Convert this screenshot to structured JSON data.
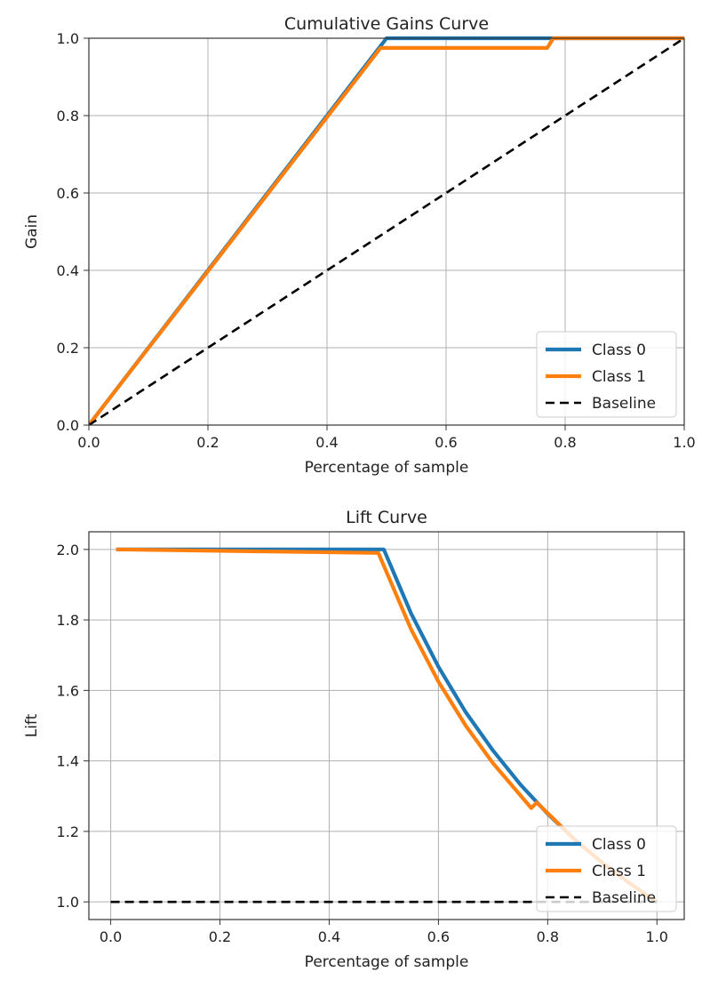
{
  "chart_data": [
    {
      "type": "line",
      "title": "Cumulative Gains Curve",
      "xlabel": "Percentage of sample",
      "ylabel": "Gain",
      "xlim": [
        0.0,
        1.0
      ],
      "ylim": [
        0.0,
        1.0
      ],
      "xticks": [
        "0.0",
        "0.2",
        "0.4",
        "0.6",
        "0.8",
        "1.0"
      ],
      "yticks": [
        "0.0",
        "0.2",
        "0.4",
        "0.6",
        "0.8",
        "1.0"
      ],
      "grid": true,
      "legend_position": "lower-right",
      "series": [
        {
          "name": "Class 0",
          "color": "#1f77b4",
          "x": [
            0.0,
            0.49,
            0.5,
            1.0
          ],
          "y": [
            0.0,
            0.98,
            1.0,
            1.0
          ]
        },
        {
          "name": "Class 1",
          "color": "#ff7f0e",
          "x": [
            0.0,
            0.49,
            0.77,
            0.78,
            1.0
          ],
          "y": [
            0.0,
            0.975,
            0.975,
            1.0,
            1.0
          ]
        },
        {
          "name": "Baseline",
          "color": "#000000",
          "dashed": true,
          "x": [
            0.0,
            1.0
          ],
          "y": [
            0.0,
            1.0
          ]
        }
      ]
    },
    {
      "type": "line",
      "title": "Lift Curve",
      "xlabel": "Percentage of sample",
      "ylabel": "Lift",
      "xlim": [
        -0.04,
        1.05
      ],
      "ylim": [
        0.95,
        2.05
      ],
      "xticks": [
        "0.0",
        "0.2",
        "0.4",
        "0.6",
        "0.8",
        "1.0"
      ],
      "yticks": [
        "1.0",
        "1.2",
        "1.4",
        "1.6",
        "1.8",
        "2.0"
      ],
      "grid": true,
      "legend_position": "lower-right",
      "series": [
        {
          "name": "Class 0",
          "color": "#1f77b4",
          "x": [
            0.01,
            0.5,
            0.55,
            0.6,
            0.65,
            0.7,
            0.75,
            0.8,
            0.85,
            0.9,
            0.95,
            1.0
          ],
          "y": [
            2.0,
            2.0,
            1.818,
            1.667,
            1.538,
            1.429,
            1.333,
            1.25,
            1.176,
            1.111,
            1.053,
            1.0
          ]
        },
        {
          "name": "Class 1",
          "color": "#ff7f0e",
          "x": [
            0.01,
            0.49,
            0.55,
            0.6,
            0.65,
            0.7,
            0.77,
            0.78,
            0.85,
            0.9,
            0.95,
            1.0
          ],
          "y": [
            2.0,
            1.99,
            1.773,
            1.625,
            1.5,
            1.393,
            1.266,
            1.282,
            1.176,
            1.111,
            1.053,
            1.0
          ]
        },
        {
          "name": "Baseline",
          "color": "#000000",
          "dashed": true,
          "x": [
            0.0,
            1.0
          ],
          "y": [
            1.0,
            1.0
          ]
        }
      ]
    }
  ]
}
